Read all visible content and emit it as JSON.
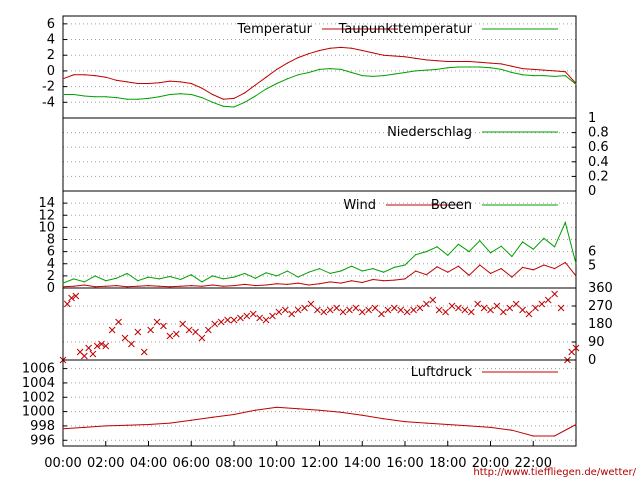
{
  "colors": {
    "red": "#c00000",
    "green": "#00a000",
    "grid": "#a0a0a0"
  },
  "footer_url": "http://www.tiefflie gen.de/wetter/",
  "chart_data": [
    {
      "type": "line",
      "panel": "temperature",
      "series": [
        {
          "name": "Temperatur",
          "color": "#c00000",
          "x": [
            0,
            0.5,
            1,
            1.5,
            2,
            2.5,
            3,
            3.5,
            4,
            4.5,
            5,
            5.5,
            6,
            6.5,
            7,
            7.5,
            8,
            8.5,
            9,
            9.5,
            10,
            10.5,
            11,
            11.5,
            12,
            12.5,
            13,
            13.5,
            14,
            14.5,
            15,
            15.5,
            16,
            16.5,
            17,
            17.5,
            18,
            18.5,
            19,
            19.5,
            20,
            20.5,
            21,
            21.5,
            22,
            22.5,
            23,
            23.5,
            24
          ],
          "y": [
            -1.0,
            -0.5,
            -0.5,
            -0.6,
            -0.8,
            -1.2,
            -1.4,
            -1.6,
            -1.6,
            -1.5,
            -1.3,
            -1.4,
            -1.6,
            -2.2,
            -3.0,
            -3.6,
            -3.5,
            -2.8,
            -1.8,
            -0.8,
            0.2,
            1.0,
            1.7,
            2.2,
            2.6,
            2.9,
            3.0,
            2.9,
            2.6,
            2.3,
            2.0,
            1.9,
            1.8,
            1.6,
            1.4,
            1.3,
            1.2,
            1.2,
            1.2,
            1.1,
            1.0,
            0.9,
            0.6,
            0.3,
            0.2,
            0.1,
            0.0,
            -0.1,
            -1.6
          ]
        },
        {
          "name": "Taupunkttemperatur",
          "color": "#00a000",
          "x": [
            0,
            0.5,
            1,
            1.5,
            2,
            2.5,
            3,
            3.5,
            4,
            4.5,
            5,
            5.5,
            6,
            6.5,
            7,
            7.5,
            8,
            8.5,
            9,
            9.5,
            10,
            10.5,
            11,
            11.5,
            12,
            12.5,
            13,
            13.5,
            14,
            14.5,
            15,
            15.5,
            16,
            16.5,
            17,
            17.5,
            18,
            18.5,
            19,
            19.5,
            20,
            20.5,
            21,
            21.5,
            22,
            22.5,
            23,
            23.5,
            24
          ],
          "y": [
            -3.0,
            -3.0,
            -3.2,
            -3.3,
            -3.3,
            -3.4,
            -3.6,
            -3.6,
            -3.5,
            -3.3,
            -3.0,
            -2.9,
            -3.0,
            -3.4,
            -4.0,
            -4.5,
            -4.6,
            -4.0,
            -3.2,
            -2.3,
            -1.6,
            -1.0,
            -0.5,
            -0.2,
            0.2,
            0.3,
            0.2,
            -0.2,
            -0.6,
            -0.7,
            -0.6,
            -0.4,
            -0.2,
            0.0,
            0.1,
            0.2,
            0.4,
            0.5,
            0.5,
            0.5,
            0.4,
            0.2,
            -0.2,
            -0.5,
            -0.6,
            -0.6,
            -0.7,
            -0.6,
            -1.7
          ]
        }
      ],
      "ylim": [
        -6,
        7
      ],
      "yticks": [
        6,
        4,
        2,
        0,
        -2,
        -4
      ]
    },
    {
      "type": "line",
      "panel": "precipitation",
      "series": [
        {
          "name": "Niederschlag",
          "color": "#00a000",
          "x": [
            0,
            24
          ],
          "y": [
            0,
            0
          ]
        }
      ],
      "ylim": [
        0,
        1
      ],
      "yticks": [
        1,
        0.8,
        0.6,
        0.4,
        0.2,
        0
      ],
      "ytick_labels": [
        "1",
        "0.8",
        "0.6",
        "0.4",
        "0.2",
        "0"
      ]
    },
    {
      "type": "line",
      "panel": "wind",
      "series": [
        {
          "name": "Wind",
          "color": "#c00000",
          "x": [
            0,
            0.5,
            1,
            1.5,
            2,
            2.5,
            3,
            3.5,
            4,
            4.5,
            5,
            5.5,
            6,
            6.5,
            7,
            7.5,
            8,
            8.5,
            9,
            9.5,
            10,
            10.5,
            11,
            11.5,
            12,
            12.5,
            13,
            13.5,
            14,
            14.5,
            15,
            15.5,
            16,
            16.5,
            17,
            17.5,
            18,
            18.5,
            19,
            19.5,
            20,
            20.5,
            21,
            21.5,
            22,
            22.5,
            23,
            23.5,
            24
          ],
          "y": [
            0.2,
            0.3,
            0.5,
            0.2,
            0.3,
            0.4,
            0.2,
            0.3,
            0.4,
            0.3,
            0.2,
            0.3,
            0.4,
            0.3,
            0.5,
            0.3,
            0.4,
            0.6,
            0.4,
            0.5,
            0.7,
            0.6,
            0.8,
            0.5,
            0.7,
            1.0,
            0.8,
            1.2,
            0.9,
            1.4,
            1.2,
            1.3,
            1.5,
            2.8,
            2.2,
            3.5,
            2.6,
            3.6,
            2.1,
            3.8,
            2.4,
            3.2,
            1.8,
            3.4,
            3.0,
            3.8,
            3.2,
            4.2,
            2.0
          ]
        },
        {
          "name": "Boeen",
          "color": "#00a000",
          "x": [
            0,
            0.5,
            1,
            1.5,
            2,
            2.5,
            3,
            3.5,
            4,
            4.5,
            5,
            5.5,
            6,
            6.5,
            7,
            7.5,
            8,
            8.5,
            9,
            9.5,
            10,
            10.5,
            11,
            11.5,
            12,
            12.5,
            13,
            13.5,
            14,
            14.5,
            15,
            15.5,
            16,
            16.5,
            17,
            17.5,
            18,
            18.5,
            19,
            19.5,
            20,
            20.5,
            21,
            21.5,
            22,
            22.5,
            23,
            23.5,
            24
          ],
          "y": [
            0.8,
            1.5,
            1.0,
            2.0,
            1.2,
            1.6,
            2.4,
            1.2,
            1.8,
            1.5,
            1.9,
            1.4,
            2.2,
            1.0,
            2.0,
            1.5,
            1.8,
            2.4,
            1.6,
            2.5,
            2.0,
            2.8,
            1.8,
            2.6,
            3.2,
            2.4,
            2.8,
            3.6,
            2.8,
            3.2,
            2.6,
            3.4,
            3.8,
            5.5,
            6.0,
            6.8,
            5.4,
            7.2,
            6.0,
            7.8,
            5.8,
            6.9,
            5.2,
            7.6,
            6.4,
            8.2,
            6.8,
            10.8,
            4.0
          ]
        }
      ],
      "ylim": [
        0,
        16
      ],
      "yticks": [
        14,
        12,
        10,
        8,
        6,
        4,
        2,
        0
      ],
      "right_labels": [
        "6",
        "5"
      ]
    },
    {
      "type": "scatter",
      "panel": "wind-direction",
      "marker": "x",
      "color": "#c00000",
      "x": [
        0,
        0.2,
        0.4,
        0.6,
        0.8,
        1,
        1.2,
        1.4,
        1.6,
        1.8,
        2,
        2.3,
        2.6,
        2.9,
        3.2,
        3.5,
        3.8,
        4.1,
        4.4,
        4.7,
        5,
        5.3,
        5.6,
        5.9,
        6.2,
        6.5,
        6.8,
        7.1,
        7.4,
        7.7,
        8,
        8.3,
        8.6,
        8.9,
        9.2,
        9.5,
        9.8,
        10.1,
        10.4,
        10.7,
        11,
        11.3,
        11.6,
        11.9,
        12.2,
        12.5,
        12.8,
        13.1,
        13.4,
        13.7,
        14,
        14.3,
        14.6,
        14.9,
        15.2,
        15.5,
        15.8,
        16.1,
        16.4,
        16.7,
        17,
        17.3,
        17.6,
        17.9,
        18.2,
        18.5,
        18.8,
        19.1,
        19.4,
        19.7,
        20,
        20.3,
        20.6,
        20.9,
        21.2,
        21.5,
        21.8,
        22.1,
        22.4,
        22.7,
        23,
        23.3,
        23.6,
        23.8,
        24
      ],
      "y": [
        0,
        280,
        310,
        320,
        40,
        20,
        60,
        30,
        70,
        80,
        70,
        150,
        190,
        110,
        80,
        140,
        40,
        150,
        190,
        170,
        120,
        130,
        180,
        150,
        140,
        110,
        150,
        180,
        190,
        200,
        200,
        210,
        220,
        230,
        210,
        200,
        220,
        240,
        250,
        230,
        250,
        260,
        280,
        250,
        240,
        250,
        260,
        240,
        250,
        260,
        240,
        250,
        260,
        230,
        250,
        260,
        250,
        240,
        250,
        260,
        280,
        300,
        250,
        240,
        270,
        260,
        250,
        240,
        280,
        260,
        250,
        270,
        240,
        260,
        280,
        250,
        230,
        260,
        280,
        300,
        330,
        260,
        0,
        40,
        60
      ],
      "ylim": [
        0,
        360
      ],
      "yticks": [
        360,
        270,
        180,
        90,
        0
      ]
    },
    {
      "type": "line",
      "panel": "pressure",
      "series": [
        {
          "name": "Luftdruck",
          "color": "#c00000",
          "x": [
            0,
            1,
            2,
            3,
            4,
            5,
            6,
            7,
            8,
            9,
            10,
            11,
            12,
            13,
            14,
            15,
            16,
            17,
            18,
            19,
            20,
            21,
            22,
            23,
            24
          ],
          "y": [
            997.6,
            997.8,
            998.0,
            998.1,
            998.2,
            998.4,
            998.8,
            999.2,
            999.6,
            1000.2,
            1000.6,
            1000.4,
            1000.2,
            999.9,
            999.5,
            999.0,
            998.6,
            998.4,
            998.2,
            998.0,
            997.8,
            997.4,
            996.6,
            996.6,
            998.2
          ]
        }
      ],
      "ylim": [
        995.2,
        1007.2
      ],
      "yticks": [
        1006,
        1004,
        1002,
        1000,
        998,
        996
      ]
    }
  ],
  "x_axis": {
    "tick_labels": [
      "00:00",
      "02:00",
      "04:00",
      "06:00",
      "08:00",
      "10:00",
      "12:00",
      "14:00",
      "16:00",
      "18:00",
      "20:00",
      "22:00"
    ]
  }
}
